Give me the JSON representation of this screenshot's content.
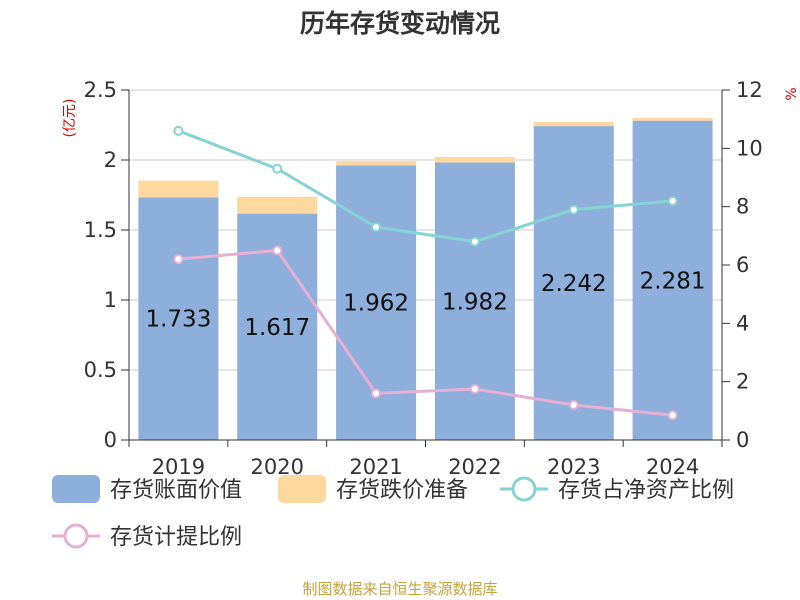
{
  "chart_data": {
    "type": "bar",
    "title": "历年存货变动情况",
    "left_unit": "(亿元)",
    "right_unit": "%",
    "categories": [
      "2019",
      "2020",
      "2021",
      "2022",
      "2023",
      "2024"
    ],
    "series": [
      {
        "name": "存货账面价值",
        "type": "bar",
        "stack": "inv",
        "axis": "left",
        "color": "#8eaedb",
        "values": [
          1.733,
          1.617,
          1.962,
          1.982,
          2.242,
          2.281
        ],
        "labels": [
          "1.733",
          "1.617",
          "1.962",
          "1.982",
          "2.242",
          "2.281"
        ]
      },
      {
        "name": "存货跌价准备",
        "type": "bar",
        "stack": "inv",
        "axis": "left",
        "color": "#fdd9a0",
        "values": [
          0.12,
          0.12,
          0.03,
          0.04,
          0.03,
          0.02
        ]
      },
      {
        "name": "存货占净资产比例",
        "type": "line",
        "axis": "right",
        "color": "#86d3d4",
        "values": [
          10.6,
          9.3,
          7.3,
          6.8,
          7.9,
          8.2
        ]
      },
      {
        "name": "存货计提比例",
        "type": "line",
        "axis": "right",
        "color": "#e6b0d4",
        "values": [
          6.2,
          6.5,
          1.6,
          1.75,
          1.2,
          0.85
        ]
      }
    ],
    "y_left": {
      "min": 0,
      "max": 2.5,
      "ticks": [
        "0",
        "0.5",
        "1",
        "1.5",
        "2",
        "2.5"
      ]
    },
    "y_right": {
      "min": 0,
      "max": 12,
      "ticks": [
        "0",
        "2",
        "4",
        "6",
        "8",
        "10",
        "12"
      ]
    },
    "grid": true,
    "legend_position": "bottom"
  },
  "source_text": "制图数据来自恒生聚源数据库"
}
